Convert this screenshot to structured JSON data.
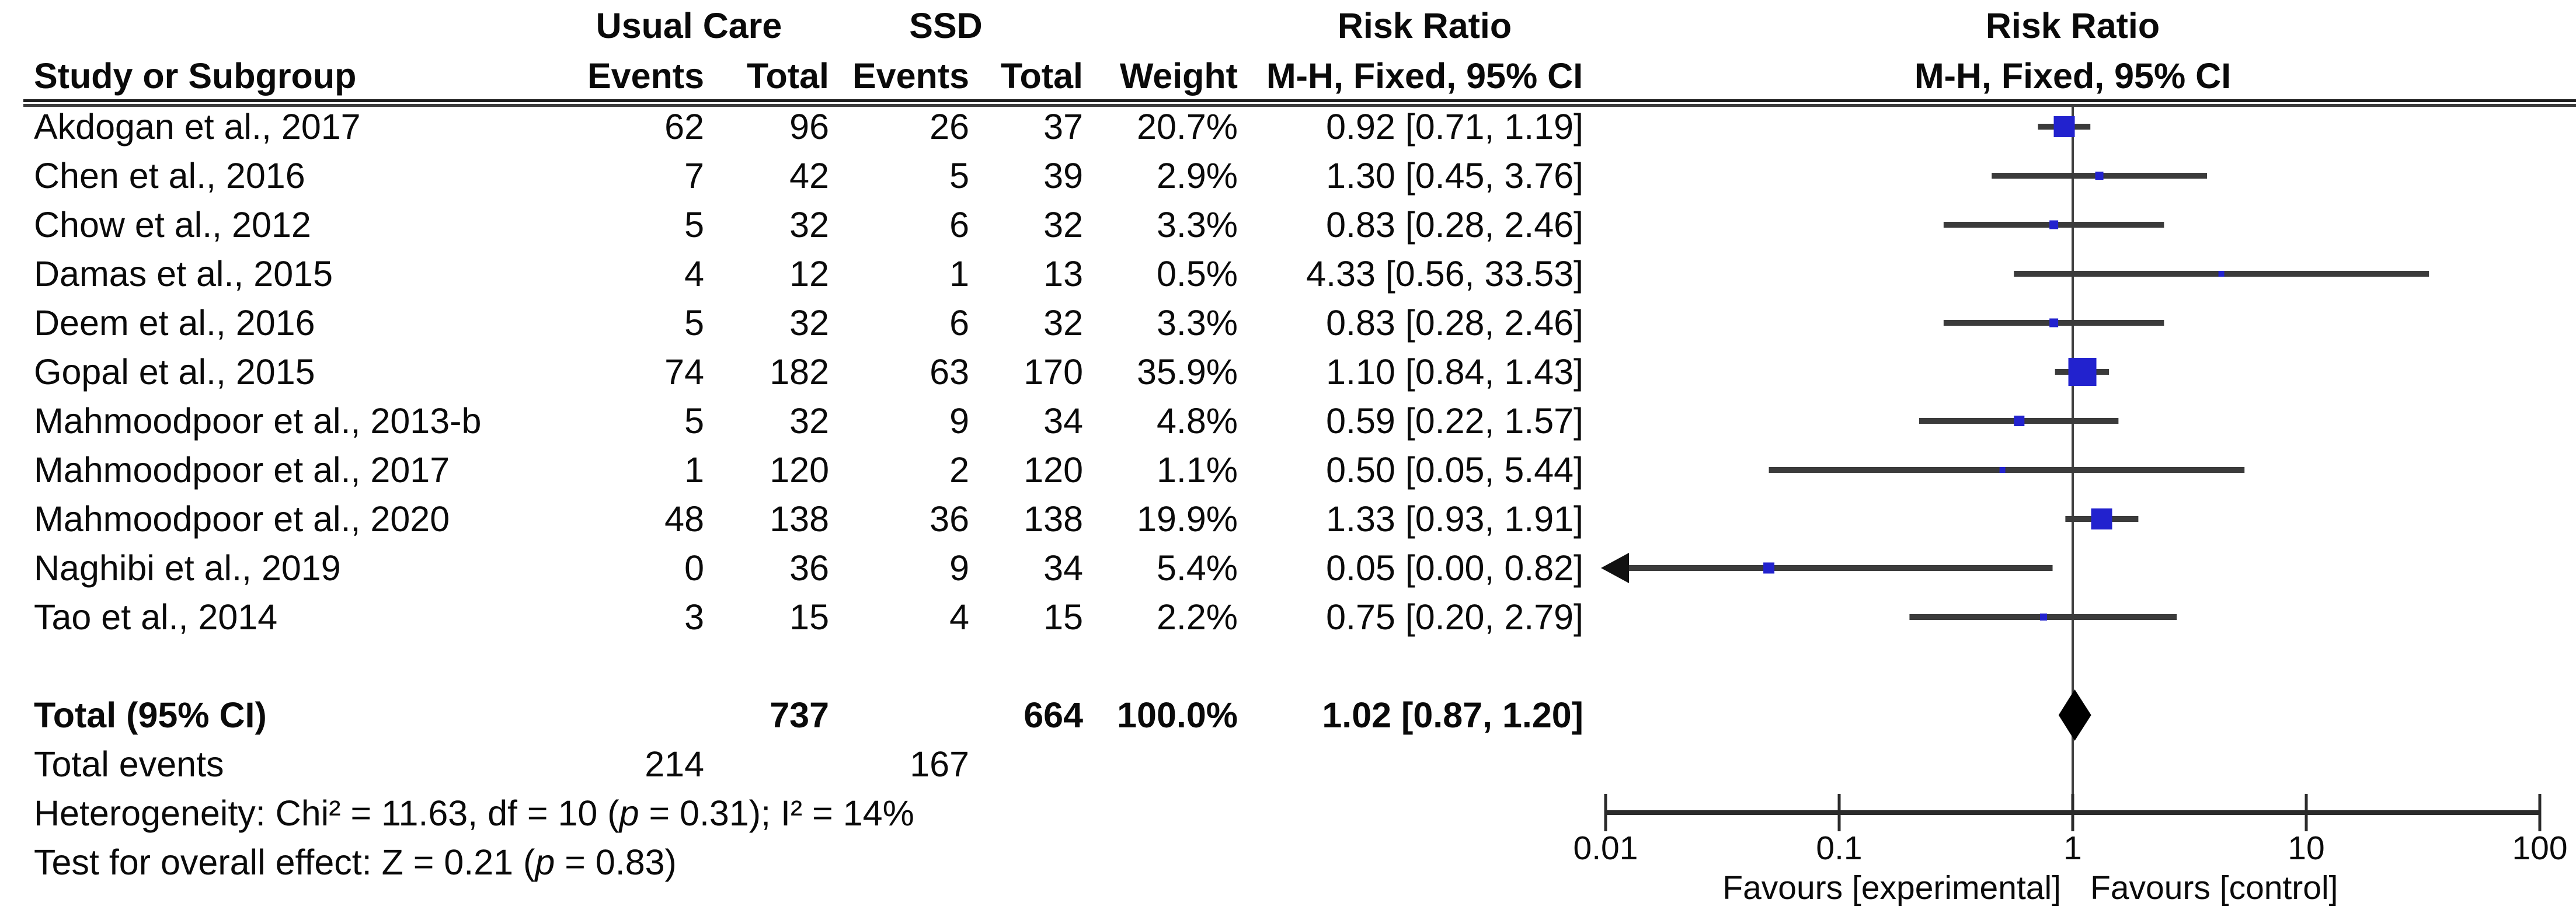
{
  "header": {
    "group1_label": "Usual Care",
    "group2_label": "SSD",
    "effect_label": "Risk Ratio",
    "method_label": "M-H, Fixed, 95% CI",
    "col_study": "Study or Subgroup",
    "col_events": "Events",
    "col_total": "Total",
    "col_weight": "Weight"
  },
  "chart_data": {
    "type": "forest",
    "effect_measure": "Risk Ratio",
    "model": "M-H, Fixed, 95% CI",
    "x_axis": {
      "scale": "log",
      "range": [
        0.01,
        100
      ],
      "ticks": [
        0.01,
        0.1,
        1,
        10,
        100
      ],
      "tick_labels": [
        "0.01",
        "0.1",
        "1",
        "10",
        "100"
      ],
      "favours_left": "Favours [experimental]",
      "favours_right": "Favours [control]"
    },
    "marker_color": "#2222CE",
    "studies": [
      {
        "name": "Akdogan et al., 2017",
        "uc_events": "62",
        "uc_total": "96",
        "ssd_events": "26",
        "ssd_total": "37",
        "weight_label": "20.7%",
        "weight": 20.7,
        "rr": 0.92,
        "ci_low": 0.71,
        "ci_high": 1.19,
        "rr_label": "0.92 [0.71, 1.19]"
      },
      {
        "name": "Chen et al., 2016",
        "uc_events": "7",
        "uc_total": "42",
        "ssd_events": "5",
        "ssd_total": "39",
        "weight_label": "2.9%",
        "weight": 2.9,
        "rr": 1.3,
        "ci_low": 0.45,
        "ci_high": 3.76,
        "rr_label": "1.30 [0.45, 3.76]"
      },
      {
        "name": "Chow et al., 2012",
        "uc_events": "5",
        "uc_total": "32",
        "ssd_events": "6",
        "ssd_total": "32",
        "weight_label": "3.3%",
        "weight": 3.3,
        "rr": 0.83,
        "ci_low": 0.28,
        "ci_high": 2.46,
        "rr_label": "0.83 [0.28, 2.46]"
      },
      {
        "name": "Damas et al., 2015",
        "uc_events": "4",
        "uc_total": "12",
        "ssd_events": "1",
        "ssd_total": "13",
        "weight_label": "0.5%",
        "weight": 0.5,
        "rr": 4.33,
        "ci_low": 0.56,
        "ci_high": 33.53,
        "rr_label": "4.33 [0.56, 33.53]"
      },
      {
        "name": "Deem et al., 2016",
        "uc_events": "5",
        "uc_total": "32",
        "ssd_events": "6",
        "ssd_total": "32",
        "weight_label": "3.3%",
        "weight": 3.3,
        "rr": 0.83,
        "ci_low": 0.28,
        "ci_high": 2.46,
        "rr_label": "0.83 [0.28, 2.46]"
      },
      {
        "name": "Gopal et al., 2015",
        "uc_events": "74",
        "uc_total": "182",
        "ssd_events": "63",
        "ssd_total": "170",
        "weight_label": "35.9%",
        "weight": 35.9,
        "rr": 1.1,
        "ci_low": 0.84,
        "ci_high": 1.43,
        "rr_label": "1.10 [0.84, 1.43]"
      },
      {
        "name": "Mahmoodpoor et al., 2013-b",
        "uc_events": "5",
        "uc_total": "32",
        "ssd_events": "9",
        "ssd_total": "34",
        "weight_label": "4.8%",
        "weight": 4.8,
        "rr": 0.59,
        "ci_low": 0.22,
        "ci_high": 1.57,
        "rr_label": "0.59 [0.22, 1.57]"
      },
      {
        "name": "Mahmoodpoor et al., 2017",
        "uc_events": "1",
        "uc_total": "120",
        "ssd_events": "2",
        "ssd_total": "120",
        "weight_label": "1.1%",
        "weight": 1.1,
        "rr": 0.5,
        "ci_low": 0.05,
        "ci_high": 5.44,
        "rr_label": "0.50 [0.05, 5.44]"
      },
      {
        "name": "Mahmoodpoor et al., 2020",
        "uc_events": "48",
        "uc_total": "138",
        "ssd_events": "36",
        "ssd_total": "138",
        "weight_label": "19.9%",
        "weight": 19.9,
        "rr": 1.33,
        "ci_low": 0.93,
        "ci_high": 1.91,
        "rr_label": "1.33 [0.93, 1.91]"
      },
      {
        "name": "Naghibi et al., 2019",
        "uc_events": "0",
        "uc_total": "36",
        "ssd_events": "9",
        "ssd_total": "34",
        "weight_label": "5.4%",
        "weight": 5.4,
        "rr": 0.05,
        "ci_low": 0.0,
        "ci_high": 0.82,
        "rr_label": "0.05 [0.00, 0.82]"
      },
      {
        "name": "Tao et al., 2014",
        "uc_events": "3",
        "uc_total": "15",
        "ssd_events": "4",
        "ssd_total": "15",
        "weight_label": "2.2%",
        "weight": 2.2,
        "rr": 0.75,
        "ci_low": 0.2,
        "ci_high": 2.79,
        "rr_label": "0.75 [0.20, 2.79]"
      }
    ],
    "total": {
      "label": "Total (95% CI)",
      "uc_total": "737",
      "ssd_total": "664",
      "weight_label": "100.0%",
      "rr": 1.02,
      "ci_low": 0.87,
      "ci_high": 1.2,
      "rr_label": "1.02 [0.87, 1.20]"
    },
    "total_events": {
      "label": "Total events",
      "uc_events": "214",
      "ssd_events": "167"
    }
  },
  "stats": {
    "heterogeneity_segments": [
      {
        "t": "Heterogeneity: Chi² = 11.63, df = 10 ("
      },
      {
        "t": "p",
        "i": true
      },
      {
        "t": " = 0.31); I² = 14%"
      }
    ],
    "overall_effect_segments": [
      {
        "t": "Test for overall effect: Z = 0.21 ("
      },
      {
        "t": "p",
        "i": true
      },
      {
        "t": " = 0.83)"
      }
    ]
  }
}
